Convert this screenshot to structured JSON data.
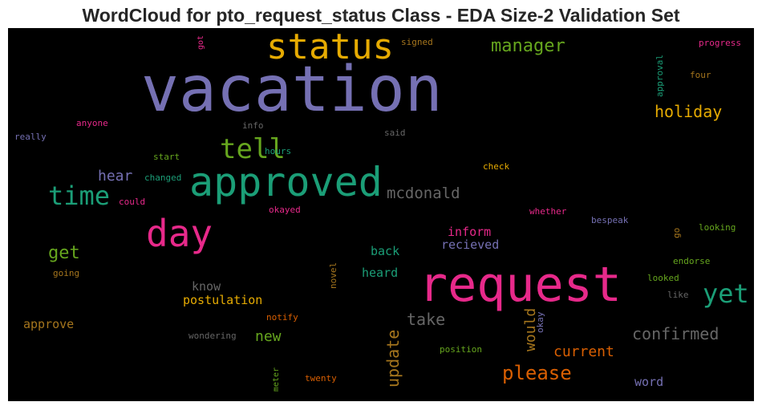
{
  "chart_data": {
    "type": "wordcloud",
    "title": "WordCloud for pto_request_status Class - EDA Size-2 Validation Set",
    "background": "#000000",
    "colormap": "Dark2",
    "words": [
      {
        "text": "vacation",
        "color": "#7570b3",
        "weight": 78,
        "orientation": "horizontal"
      },
      {
        "text": "request",
        "color": "#e7298a",
        "weight": 60,
        "orientation": "horizontal"
      },
      {
        "text": "approved",
        "color": "#1b9e77",
        "weight": 50,
        "orientation": "horizontal"
      },
      {
        "text": "status",
        "color": "#e6ab02",
        "weight": 44,
        "orientation": "horizontal"
      },
      {
        "text": "day",
        "color": "#e7298a",
        "weight": 46,
        "orientation": "horizontal"
      },
      {
        "text": "tell",
        "color": "#66a61e",
        "weight": 34,
        "orientation": "horizontal"
      },
      {
        "text": "time",
        "color": "#1b9e77",
        "weight": 32,
        "orientation": "horizontal"
      },
      {
        "text": "yet",
        "color": "#1b9e77",
        "weight": 32,
        "orientation": "horizontal"
      },
      {
        "text": "please",
        "color": "#d95f02",
        "weight": 24,
        "orientation": "horizontal"
      },
      {
        "text": "manager",
        "color": "#66a61e",
        "weight": 22,
        "orientation": "horizontal"
      },
      {
        "text": "get",
        "color": "#66a61e",
        "weight": 22,
        "orientation": "horizontal"
      },
      {
        "text": "holiday",
        "color": "#e6ab02",
        "weight": 20,
        "orientation": "horizontal"
      },
      {
        "text": "mcdonald",
        "color": "#666666",
        "weight": 19,
        "orientation": "horizontal"
      },
      {
        "text": "take",
        "color": "#666666",
        "weight": 20,
        "orientation": "horizontal"
      },
      {
        "text": "confirmed",
        "color": "#666666",
        "weight": 20,
        "orientation": "horizontal"
      },
      {
        "text": "update",
        "color": "#a6761d",
        "weight": 20,
        "orientation": "vertical"
      },
      {
        "text": "would",
        "color": "#a6761d",
        "weight": 18,
        "orientation": "vertical"
      },
      {
        "text": "hear",
        "color": "#7570b3",
        "weight": 18,
        "orientation": "horizontal"
      },
      {
        "text": "new",
        "color": "#66a61e",
        "weight": 18,
        "orientation": "horizontal"
      },
      {
        "text": "current",
        "color": "#d95f02",
        "weight": 18,
        "orientation": "horizontal"
      },
      {
        "text": "inform",
        "color": "#e7298a",
        "weight": 15,
        "orientation": "horizontal"
      },
      {
        "text": "recieved",
        "color": "#7570b3",
        "weight": 15,
        "orientation": "horizontal"
      },
      {
        "text": "back",
        "color": "#1b9e77",
        "weight": 15,
        "orientation": "horizontal"
      },
      {
        "text": "heard",
        "color": "#1b9e77",
        "weight": 15,
        "orientation": "horizontal"
      },
      {
        "text": "know",
        "color": "#666666",
        "weight": 15,
        "orientation": "horizontal"
      },
      {
        "text": "postulation",
        "color": "#e6ab02",
        "weight": 15,
        "orientation": "horizontal"
      },
      {
        "text": "approve",
        "color": "#a6761d",
        "weight": 15,
        "orientation": "horizontal"
      },
      {
        "text": "word",
        "color": "#7570b3",
        "weight": 15,
        "orientation": "horizontal"
      },
      {
        "text": "signed",
        "color": "#a6761d",
        "weight": 11,
        "orientation": "horizontal"
      },
      {
        "text": "progress",
        "color": "#e7298a",
        "weight": 11,
        "orientation": "horizontal"
      },
      {
        "text": "approval",
        "color": "#1b9e77",
        "weight": 11,
        "orientation": "vertical"
      },
      {
        "text": "four",
        "color": "#a6761d",
        "weight": 11,
        "orientation": "horizontal"
      },
      {
        "text": "got",
        "color": "#e7298a",
        "weight": 10,
        "orientation": "vertical"
      },
      {
        "text": "anyone",
        "color": "#e7298a",
        "weight": 11,
        "orientation": "horizontal"
      },
      {
        "text": "info",
        "color": "#666666",
        "weight": 11,
        "orientation": "horizontal"
      },
      {
        "text": "said",
        "color": "#666666",
        "weight": 11,
        "orientation": "horizontal"
      },
      {
        "text": "really",
        "color": "#7570b3",
        "weight": 11,
        "orientation": "horizontal"
      },
      {
        "text": "hours",
        "color": "#1b9e77",
        "weight": 11,
        "orientation": "horizontal"
      },
      {
        "text": "start",
        "color": "#66a61e",
        "weight": 11,
        "orientation": "horizontal"
      },
      {
        "text": "check",
        "color": "#e6ab02",
        "weight": 11,
        "orientation": "horizontal"
      },
      {
        "text": "changed",
        "color": "#1b9e77",
        "weight": 11,
        "orientation": "horizontal"
      },
      {
        "text": "could",
        "color": "#e7298a",
        "weight": 11,
        "orientation": "horizontal"
      },
      {
        "text": "okayed",
        "color": "#e7298a",
        "weight": 11,
        "orientation": "horizontal"
      },
      {
        "text": "whether",
        "color": "#e7298a",
        "weight": 11,
        "orientation": "horizontal"
      },
      {
        "text": "bespeak",
        "color": "#7570b3",
        "weight": 11,
        "orientation": "horizontal"
      },
      {
        "text": "looking",
        "color": "#66a61e",
        "weight": 11,
        "orientation": "horizontal"
      },
      {
        "text": "go",
        "color": "#a6761d",
        "weight": 11,
        "orientation": "vertical"
      },
      {
        "text": "endorse",
        "color": "#66a61e",
        "weight": 11,
        "orientation": "horizontal"
      },
      {
        "text": "going",
        "color": "#a6761d",
        "weight": 11,
        "orientation": "horizontal"
      },
      {
        "text": "novel",
        "color": "#a6761d",
        "weight": 11,
        "orientation": "vertical"
      },
      {
        "text": "looked",
        "color": "#66a61e",
        "weight": 11,
        "orientation": "horizontal"
      },
      {
        "text": "like",
        "color": "#666666",
        "weight": 11,
        "orientation": "horizontal"
      },
      {
        "text": "okay",
        "color": "#7570b3",
        "weight": 11,
        "orientation": "vertical"
      },
      {
        "text": "notify",
        "color": "#d95f02",
        "weight": 11,
        "orientation": "horizontal"
      },
      {
        "text": "wondering",
        "color": "#666666",
        "weight": 11,
        "orientation": "horizontal"
      },
      {
        "text": "position",
        "color": "#66a61e",
        "weight": 11,
        "orientation": "horizontal"
      },
      {
        "text": "meter",
        "color": "#66a61e",
        "weight": 10,
        "orientation": "vertical"
      },
      {
        "text": "twenty",
        "color": "#d95f02",
        "weight": 11,
        "orientation": "horizontal"
      }
    ]
  }
}
